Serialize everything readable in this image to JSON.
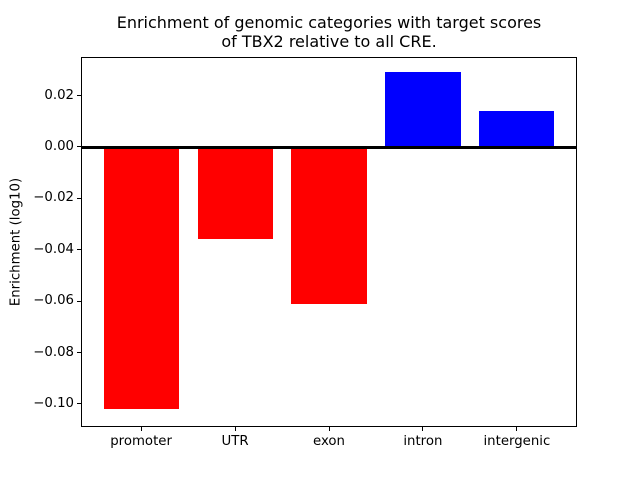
{
  "chart_data": {
    "type": "bar",
    "title": "Enrichment of genomic categories with target scores\nof TBX2 relative to all CRE.",
    "title_lines": [
      "Enrichment of genomic categories with target scores",
      "of TBX2 relative to all CRE."
    ],
    "xlabel": "",
    "ylabel": "Enrichment (log10)",
    "categories": [
      "promoter",
      "UTR",
      "exon",
      "intron",
      "intergenic"
    ],
    "values": [
      -0.102,
      -0.036,
      -0.061,
      0.029,
      0.014
    ],
    "bar_colors": [
      "#ff0000",
      "#ff0000",
      "#ff0000",
      "#0000ff",
      "#0000ff"
    ],
    "colors": {
      "negative_bar": "#ff0000",
      "positive_bar": "#0000ff",
      "axis": "#000000",
      "background": "#ffffff"
    },
    "ylim": [
      -0.109,
      0.035
    ],
    "xlim": [
      -0.64,
      4.64
    ],
    "bar_width": 0.8,
    "yticks": [
      {
        "value": 0.02,
        "label": "0.02"
      },
      {
        "value": 0.0,
        "label": "0.00"
      },
      {
        "value": -0.02,
        "label": "−0.02"
      },
      {
        "value": -0.04,
        "label": "−0.04"
      },
      {
        "value": -0.06,
        "label": "−0.06"
      },
      {
        "value": -0.08,
        "label": "−0.08"
      },
      {
        "value": -0.1,
        "label": "−0.10"
      }
    ],
    "zero_line": true,
    "grid": false,
    "legend": "none"
  }
}
